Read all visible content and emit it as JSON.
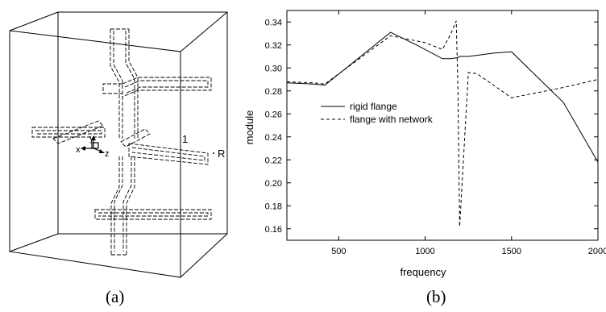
{
  "figure": {
    "panel_a_caption": "(a)",
    "panel_b_caption": "(b)",
    "panel_a_labels": {
      "axis_x": "x",
      "axis_y": "y",
      "axis_z": "z",
      "port_one": "1",
      "port_r": "R"
    }
  },
  "chart_data": {
    "type": "line",
    "xlabel": "frequency",
    "ylabel": "module",
    "xlim": [
      200,
      2000
    ],
    "ylim": [
      0.15,
      0.35
    ],
    "x_ticks": [
      500,
      1000,
      1500,
      2000
    ],
    "y_ticks": [
      0.16,
      0.18,
      0.2,
      0.22,
      0.24,
      0.26,
      0.28,
      0.3,
      0.32,
      0.34
    ],
    "x_tick_labels": [
      "500",
      "1000",
      "1500",
      "2000"
    ],
    "y_tick_labels": [
      "0.16",
      "0.18",
      "0.20",
      "0.22",
      "0.24",
      "0.26",
      "0.28",
      "0.30",
      "0.32",
      "0.34"
    ],
    "grid": false,
    "legend_position": "middle-left",
    "series": [
      {
        "name": "rigid flange",
        "line_style": "solid",
        "color": "#000000",
        "x": [
          200,
          350,
          420,
          800,
          950,
          1100,
          1150,
          1190,
          1200,
          1250,
          1300,
          1400,
          1500,
          1800,
          2000
        ],
        "y": [
          0.287,
          0.286,
          0.285,
          0.331,
          0.32,
          0.308,
          0.308,
          0.309,
          0.31,
          0.31,
          0.311,
          0.313,
          0.314,
          0.27,
          0.218
        ]
      },
      {
        "name": "flange with network",
        "line_style": "dashed",
        "color": "#000000",
        "x": [
          200,
          350,
          420,
          800,
          1000,
          1100,
          1150,
          1180,
          1190,
          1200,
          1250,
          1300,
          1500,
          1800,
          2000
        ],
        "y": [
          0.288,
          0.287,
          0.286,
          0.328,
          0.322,
          0.316,
          0.33,
          0.341,
          0.28,
          0.162,
          0.296,
          0.295,
          0.274,
          0.283,
          0.29
        ]
      }
    ]
  }
}
